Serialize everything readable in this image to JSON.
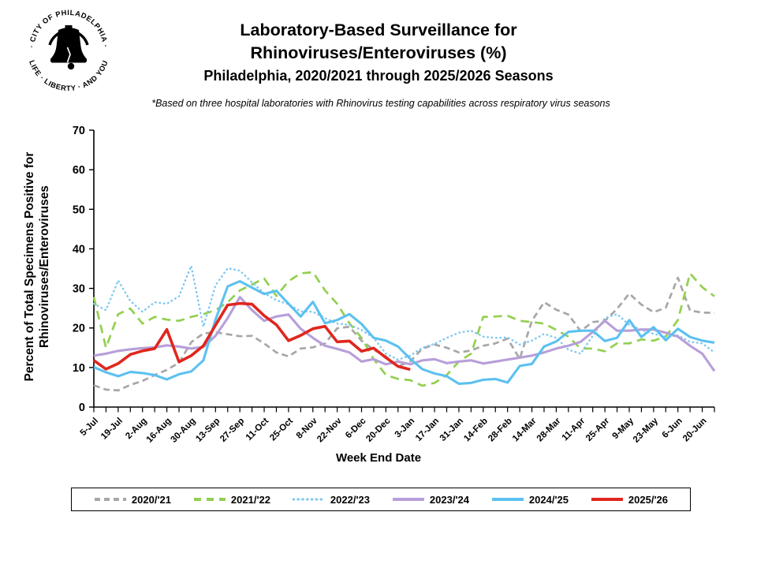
{
  "header": {
    "title_line1": "Laboratory-Based Surveillance for",
    "title_line2": "Rhinoviruses/Enteroviruses (%)",
    "title_line3": "Philadelphia, 2020/2021 through 2025/2026 Seasons",
    "footnote": "*Based on three hospital laboratories with Rhinovirus testing capabilities across respiratory virus seasons"
  },
  "logo": {
    "text_top": "· CITY OF PHILADELPHIA ·",
    "text_bottom": "LIFE · LIBERTY · AND YOU"
  },
  "chart_data": {
    "type": "line",
    "title": "Laboratory-Based Surveillance for Rhinoviruses/Enteroviruses (%), Philadelphia, 2020/2021 through 2025/2026 Seasons",
    "xlabel": "Week End Date",
    "ylabel": "Percent of Total Specimens Positive for Rhinoviruses/Enteroviruses",
    "ylabel_line1": "Percent of Total Specimens Positive for",
    "ylabel_line2": "Rhinoviruses/Enteroviruses",
    "ylim": [
      0,
      70
    ],
    "yticks": [
      0,
      10,
      20,
      30,
      40,
      50,
      60,
      70
    ],
    "grid": false,
    "legend_position": "bottom",
    "xtick_label_every": 2,
    "categories": [
      "5-Jul",
      "12-Jul",
      "19-Jul",
      "26-Jul",
      "2-Aug",
      "9-Aug",
      "16-Aug",
      "23-Aug",
      "30-Aug",
      "6-Sep",
      "13-Sep",
      "20-Sep",
      "27-Sep",
      "4-Oct",
      "11-Oct",
      "18-Oct",
      "25-Oct",
      "1-Nov",
      "8-Nov",
      "15-Nov",
      "22-Nov",
      "29-Nov",
      "6-Dec",
      "13-Dec",
      "20-Dec",
      "27-Dec",
      "3-Jan",
      "10-Jan",
      "17-Jan",
      "24-Jan",
      "31-Jan",
      "7-Feb",
      "14-Feb",
      "21-Feb",
      "28-Feb",
      "7-Mar",
      "14-Mar",
      "21-Mar",
      "28-Mar",
      "4-Apr",
      "11-Apr",
      "18-Apr",
      "25-Apr",
      "2-May",
      "9-May",
      "16-May",
      "23-May",
      "30-May",
      "6-Jun",
      "13-Jun",
      "20-Jun",
      "27-Jun"
    ],
    "series": [
      {
        "name": "2020/'21",
        "color": "#a7a7a7",
        "style": "dashed",
        "values": [
          5.5,
          4.4,
          4.2,
          5.6,
          6.6,
          8.1,
          9.4,
          11.2,
          16.4,
          18.6,
          18.9,
          18.4,
          17.9,
          18.0,
          16.1,
          13.8,
          12.8,
          14.8,
          15.1,
          16.1,
          19.9,
          20.3,
          16.8,
          14.5,
          12.8,
          10.3,
          11.5,
          14.8,
          15.8,
          15.0,
          13.8,
          14.3,
          15.5,
          16.1,
          17.3,
          12.2,
          21.8,
          26.5,
          24.6,
          23.4,
          19.2,
          21.5,
          21.8,
          24.8,
          28.7,
          25.9,
          24.0,
          25.1,
          32.7,
          24.4,
          23.9,
          23.8
        ]
      },
      {
        "name": "2021/'22",
        "color": "#92d050",
        "style": "dashed",
        "values": [
          27.8,
          15.0,
          23.5,
          24.9,
          21.1,
          22.8,
          22.1,
          21.8,
          22.8,
          23.5,
          24.5,
          26.5,
          29.5,
          31.0,
          32.5,
          28.1,
          31.8,
          33.8,
          34.1,
          29.5,
          26.1,
          21.2,
          17.5,
          12.1,
          8.1,
          7.1,
          6.8,
          5.4,
          6.1,
          8.1,
          11.5,
          13.5,
          22.8,
          22.9,
          23.1,
          21.8,
          21.5,
          21.1,
          19.5,
          17.8,
          14.8,
          14.8,
          14.1,
          16.1,
          16.1,
          17.1,
          16.8,
          17.8,
          22.0,
          33.8,
          30.3,
          28.0
        ]
      },
      {
        "name": "2022/'23",
        "color": "#7ec8f0",
        "style": "dotted",
        "values": [
          26.1,
          24.5,
          32.0,
          26.8,
          24.1,
          26.5,
          26.1,
          28.0,
          35.7,
          20.3,
          30.8,
          35.1,
          34.5,
          31.5,
          28.8,
          27.0,
          26.0,
          24.2,
          24.1,
          22.5,
          21.1,
          20.8,
          19.5,
          17.5,
          13.5,
          12.0,
          13.0,
          15.0,
          16.0,
          17.5,
          18.8,
          19.3,
          17.8,
          17.5,
          17.6,
          15.8,
          16.8,
          18.5,
          17.5,
          14.5,
          13.5,
          18.0,
          22.5,
          23.5,
          20.8,
          19.5,
          18.5,
          17.8,
          18.1,
          16.5,
          16.1,
          13.8
        ]
      },
      {
        "name": "2023/'24",
        "color": "#b79fd9",
        "style": "solid",
        "values": [
          13.0,
          13.5,
          14.2,
          14.6,
          14.9,
          15.1,
          15.6,
          15.3,
          14.8,
          15.2,
          18.0,
          22.5,
          27.8,
          24.5,
          21.8,
          22.9,
          23.4,
          19.8,
          17.5,
          15.5,
          14.7,
          13.8,
          11.5,
          12.1,
          10.8,
          11.5,
          10.8,
          11.8,
          12.1,
          11.1,
          11.5,
          11.8,
          11.0,
          11.5,
          12.0,
          12.5,
          13.0,
          13.8,
          14.8,
          15.5,
          16.5,
          19.0,
          21.8,
          19.3,
          19.3,
          19.6,
          19.6,
          18.8,
          17.8,
          15.5,
          13.5,
          9.1
        ]
      },
      {
        "name": "2024/'25",
        "color": "#5cc1f0",
        "style": "solid",
        "values": [
          10.1,
          8.8,
          7.8,
          8.9,
          8.6,
          8.1,
          7.0,
          8.3,
          9.0,
          11.8,
          22.1,
          30.5,
          31.8,
          30.2,
          28.6,
          29.4,
          26.1,
          22.9,
          26.6,
          21.2,
          22.0,
          23.5,
          21.0,
          17.5,
          16.8,
          15.3,
          12.2,
          9.6,
          8.5,
          7.8,
          5.9,
          6.1,
          6.9,
          7.1,
          6.2,
          10.4,
          10.9,
          15.3,
          16.6,
          19.0,
          19.3,
          19.3,
          16.7,
          17.5,
          22.0,
          17.7,
          20.2,
          16.9,
          19.8,
          17.7,
          16.8,
          16.3
        ]
      },
      {
        "name": "2025/'26",
        "color": "#e0261d",
        "style": "solid",
        "values": [
          11.8,
          9.6,
          11.0,
          13.3,
          14.2,
          14.8,
          19.6,
          11.4,
          13.0,
          15.5,
          20.7,
          25.8,
          26.2,
          26.0,
          23.1,
          20.8,
          16.8,
          18.1,
          19.8,
          20.4,
          16.5,
          16.7,
          14.1,
          14.9,
          12.5,
          10.3,
          9.5
        ]
      }
    ]
  }
}
